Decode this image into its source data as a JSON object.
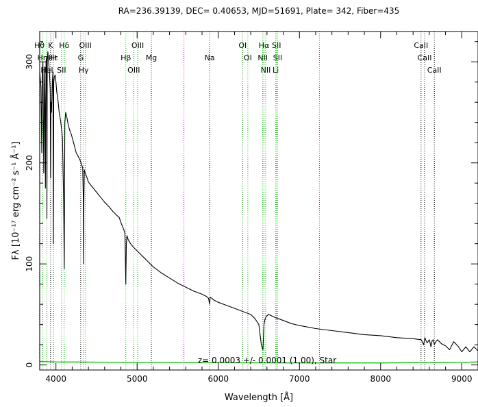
{
  "chart_data": {
    "type": "line",
    "title": "RA=236.39139, DEC= 0.40653, MJD=51691, Plate= 342, Fiber=435",
    "xlabel": "Wavelength [Å]",
    "ylabel": "Fλ [10⁻¹⁷ erg cm⁻² s⁻¹ Å⁻¹]",
    "xlim": [
      3800,
      9200
    ],
    "ylim": [
      -5,
      330
    ],
    "x_ticks": [
      4000,
      5000,
      6000,
      7000,
      8000,
      9000
    ],
    "y_ticks": [
      0,
      100,
      200,
      300
    ],
    "annotation": "z= 0.0003 +/- 0.0001 (1.00), Star",
    "colors": {
      "spectrum": "#000000",
      "error": "#00c000",
      "emission_line": "#00c000",
      "absorption_line": "#000000",
      "sky_line": "#c000c0"
    },
    "series": [
      {
        "x": [
          3800,
          3815,
          3825,
          3830,
          3840,
          3850,
          3860,
          3865,
          3870,
          3878,
          3885,
          3889,
          3893,
          3900,
          3910,
          3920,
          3930,
          3934,
          3938,
          3945,
          3955,
          3963,
          3968,
          3973,
          3980,
          3990,
          4000,
          4010,
          4025,
          4040,
          4060,
          4080,
          4095,
          4102,
          4110,
          4120,
          4135,
          4150,
          4170,
          4190,
          4210,
          4230,
          4250,
          4270,
          4290,
          4310,
          4330,
          4338,
          4341,
          4344,
          4350,
          4360,
          4380,
          4400,
          4450,
          4500,
          4550,
          4600,
          4650,
          4700,
          4750,
          4780,
          4800,
          4820,
          4840,
          4850,
          4855,
          4861,
          4867,
          4875,
          4890,
          4920,
          4950,
          5000,
          5050,
          5100,
          5150,
          5200,
          5300,
          5400,
          5500,
          5600,
          5700,
          5800,
          5850,
          5880,
          5893,
          5900,
          5920,
          5950,
          6000,
          6100,
          6200,
          6300,
          6400,
          6450,
          6500,
          6530,
          6550,
          6563,
          6575,
          6590,
          6620,
          6700,
          6800,
          6900,
          7000,
          7200,
          7400,
          7600,
          7800,
          8000,
          8200,
          8400,
          8500,
          8530,
          8545,
          8560,
          8575,
          8600,
          8620,
          8635,
          8650,
          8662,
          8680,
          8700,
          8750,
          8800,
          8850,
          8900,
          8950,
          9000,
          9050,
          9100,
          9150,
          9200
        ],
        "y": [
          290,
          275,
          210,
          285,
          300,
          190,
          295,
          260,
          175,
          300,
          305,
          145,
          300,
          310,
          300,
          290,
          270,
          185,
          260,
          250,
          280,
          290,
          120,
          280,
          285,
          287,
          280,
          270,
          262,
          250,
          240,
          225,
          160,
          95,
          240,
          250,
          245,
          238,
          232,
          228,
          222,
          216,
          210,
          207,
          204,
          200,
          195,
          160,
          100,
          165,
          193,
          190,
          186,
          181,
          176,
          171,
          166,
          161,
          157,
          152,
          148,
          146,
          141,
          137,
          133,
          130,
          110,
          80,
          120,
          128,
          124,
          120,
          117,
          113,
          109,
          105,
          101,
          97,
          91,
          86,
          81,
          77,
          73,
          70,
          68,
          66,
          60,
          67,
          66,
          64,
          62,
          59,
          56,
          53,
          50,
          46,
          40,
          20,
          15,
          40,
          45,
          48,
          50,
          47,
          44,
          41,
          39,
          36,
          34,
          32,
          30,
          29,
          27,
          26,
          25,
          20,
          27,
          24,
          22,
          25,
          18,
          24,
          25,
          20,
          23,
          25,
          21,
          19,
          15,
          23,
          19,
          13,
          18,
          13,
          18,
          14
        ]
      },
      {
        "x": [
          3800,
          4000,
          4500,
          5000,
          6000,
          7000,
          8000,
          9000,
          9200
        ],
        "y": [
          3.5,
          3,
          2.8,
          2.5,
          2.2,
          2,
          2,
          2.5,
          3
        ]
      }
    ],
    "lines": [
      {
        "label": "Hθ",
        "x": 3797,
        "row": 0,
        "kind": "emission"
      },
      {
        "label": "Hη",
        "x": 3835,
        "row": 1,
        "kind": "emission"
      },
      {
        "label": "K",
        "x": 3934,
        "row": 0,
        "kind": "absorption"
      },
      {
        "label": "H",
        "x": 3969,
        "row": 1,
        "kind": "absorption"
      },
      {
        "label": "Hε",
        "x": 3970,
        "row": 1,
        "kind": "emission"
      },
      {
        "label": "HeI",
        "x": 3889,
        "row": 2,
        "kind": "emission"
      },
      {
        "label": "SII",
        "x": 4069,
        "row": 2,
        "kind": "emission"
      },
      {
        "label": "Hδ",
        "x": 4102,
        "row": 0,
        "kind": "emission"
      },
      {
        "label": "G",
        "x": 4305,
        "row": 1,
        "kind": "absorption"
      },
      {
        "label": "OIII",
        "x": 4363,
        "row": 0,
        "kind": "emission"
      },
      {
        "label": "Hγ",
        "x": 4341,
        "row": 2,
        "kind": "emission"
      },
      {
        "label": "Hβ",
        "x": 4861,
        "row": 1,
        "kind": "emission"
      },
      {
        "label": "OIII",
        "x": 4959,
        "row": 2,
        "kind": "emission"
      },
      {
        "label": "OIII",
        "x": 5007,
        "row": 0,
        "kind": "emission"
      },
      {
        "label": "Mg",
        "x": 5175,
        "row": 1,
        "kind": "absorption"
      },
      {
        "label": "Na",
        "x": 5894,
        "row": 1,
        "kind": "absorption"
      },
      {
        "label": "OI",
        "x": 6300,
        "row": 0,
        "kind": "emission"
      },
      {
        "label": "OI",
        "x": 6364,
        "row": 1,
        "kind": "emission"
      },
      {
        "label": "Hα",
        "x": 6563,
        "row": 0,
        "kind": "emission"
      },
      {
        "label": "NII",
        "x": 6548,
        "row": 1,
        "kind": "emission"
      },
      {
        "label": "NII",
        "x": 6584,
        "row": 2,
        "kind": "emission"
      },
      {
        "label": "Li",
        "x": 6708,
        "row": 2,
        "kind": "emission"
      },
      {
        "label": "SII",
        "x": 6717,
        "row": 0,
        "kind": "emission"
      },
      {
        "label": "SII",
        "x": 6731,
        "row": 1,
        "kind": "emission"
      },
      {
        "label": "CaII",
        "x": 8498,
        "row": 0,
        "kind": "absorption"
      },
      {
        "label": "CaII",
        "x": 8542,
        "row": 1,
        "kind": "absorption"
      },
      {
        "label": "CaII",
        "x": 8662,
        "row": 2,
        "kind": "absorption"
      }
    ],
    "sky_lines": [
      5577,
      6300,
      7246
    ]
  }
}
